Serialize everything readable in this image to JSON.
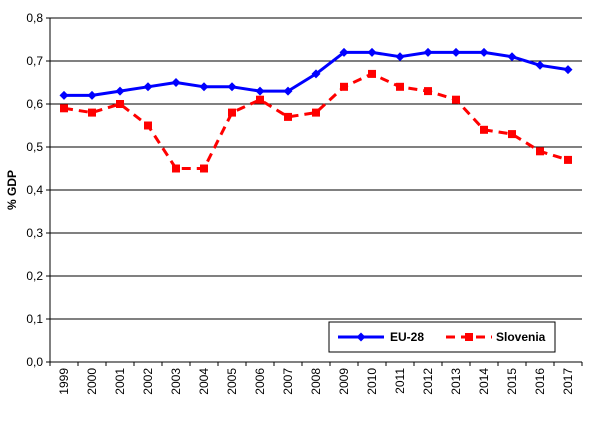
{
  "chart_data": {
    "type": "line",
    "title": "",
    "xlabel": "",
    "ylabel": "% GDP",
    "ylim": [
      0,
      0.8
    ],
    "y_ticks": [
      "0,0",
      "0,1",
      "0,2",
      "0,3",
      "0,4",
      "0,5",
      "0,6",
      "0,7",
      "0,8"
    ],
    "grid": "horizontal",
    "legend_position": "bottom-right",
    "categories": [
      "1999",
      "2000",
      "2001",
      "2002",
      "2003",
      "2004",
      "2005",
      "2006",
      "2007",
      "2008",
      "2009",
      "2010",
      "2011",
      "2012",
      "2013",
      "2014",
      "2015",
      "2016",
      "2017"
    ],
    "series": [
      {
        "name": "EU-28",
        "color": "#0000ff",
        "line_style": "solid",
        "marker": "diamond",
        "values": [
          0.62,
          0.62,
          0.63,
          0.64,
          0.65,
          0.64,
          0.64,
          0.63,
          0.63,
          0.67,
          0.72,
          0.72,
          0.71,
          0.72,
          0.72,
          0.72,
          0.71,
          0.69,
          0.68
        ]
      },
      {
        "name": "Slovenia",
        "color": "#ff0000",
        "line_style": "dashed",
        "marker": "square",
        "values": [
          0.59,
          0.58,
          0.6,
          0.55,
          0.45,
          0.45,
          0.58,
          0.61,
          0.57,
          0.58,
          0.64,
          0.67,
          0.64,
          0.63,
          0.61,
          0.54,
          0.53,
          0.49,
          0.47
        ]
      }
    ]
  }
}
